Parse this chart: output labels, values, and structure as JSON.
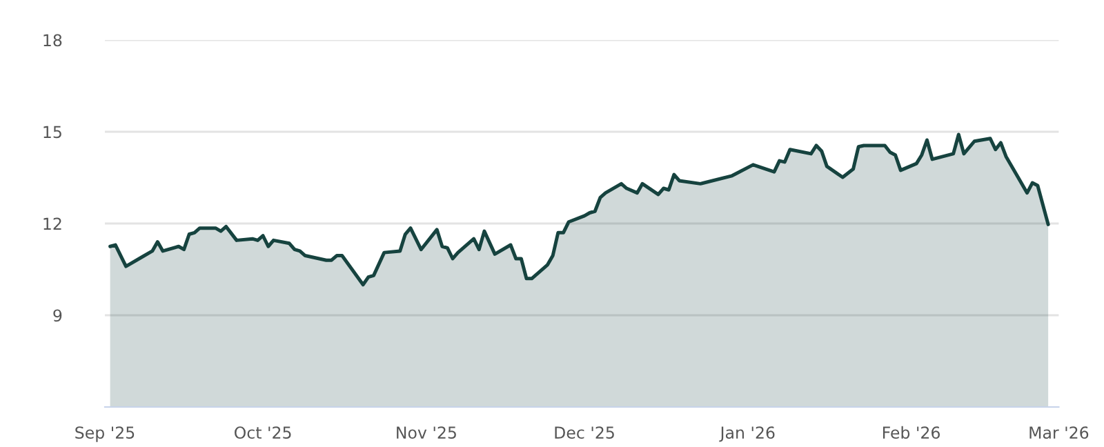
{
  "chart_data": {
    "type": "area",
    "x": [
      "2025-09-02",
      "2025-09-03",
      "2025-09-05",
      "2025-09-08",
      "2025-09-10",
      "2025-09-11",
      "2025-09-12",
      "2025-09-15",
      "2025-09-16",
      "2025-09-17",
      "2025-09-18",
      "2025-09-19",
      "2025-09-22",
      "2025-09-23",
      "2025-09-24",
      "2025-09-26",
      "2025-09-29",
      "2025-09-30",
      "2025-10-01",
      "2025-10-02",
      "2025-10-03",
      "2025-10-06",
      "2025-10-07",
      "2025-10-08",
      "2025-10-09",
      "2025-10-13",
      "2025-10-14",
      "2025-10-15",
      "2025-10-16",
      "2025-10-20",
      "2025-10-21",
      "2025-10-22",
      "2025-10-24",
      "2025-10-27",
      "2025-10-28",
      "2025-10-29",
      "2025-10-31",
      "2025-11-03",
      "2025-11-04",
      "2025-11-05",
      "2025-11-06",
      "2025-11-07",
      "2025-11-10",
      "2025-11-11",
      "2025-11-12",
      "2025-11-14",
      "2025-11-17",
      "2025-11-18",
      "2025-11-19",
      "2025-11-20",
      "2025-11-21",
      "2025-11-24",
      "2025-11-25",
      "2025-11-26",
      "2025-11-27",
      "2025-11-28",
      "2025-12-01",
      "2025-12-02",
      "2025-12-03",
      "2025-12-04",
      "2025-12-05",
      "2025-12-08",
      "2025-12-09",
      "2025-12-11",
      "2025-12-12",
      "2025-12-15",
      "2025-12-16",
      "2025-12-17",
      "2025-12-18",
      "2025-12-19",
      "2025-12-23",
      "2025-12-29",
      "2026-01-02",
      "2026-01-06",
      "2026-01-07",
      "2026-01-08",
      "2026-01-09",
      "2026-01-13",
      "2026-01-14",
      "2026-01-15",
      "2026-01-16",
      "2026-01-19",
      "2026-01-21",
      "2026-01-22",
      "2026-01-23",
      "2026-01-27",
      "2026-01-28",
      "2026-01-29",
      "2026-01-30",
      "2026-02-02",
      "2026-02-03",
      "2026-02-04",
      "2026-02-05",
      "2026-02-09",
      "2026-02-10",
      "2026-02-11",
      "2026-02-13",
      "2026-02-16",
      "2026-02-17",
      "2026-02-18",
      "2026-02-19",
      "2026-02-23",
      "2026-02-24",
      "2026-02-25",
      "2026-02-27"
    ],
    "series": [
      {
        "color": "#16433f",
        "values": [
          11.25,
          11.3,
          10.6,
          10.9,
          11.1,
          11.4,
          11.1,
          11.25,
          11.15,
          11.65,
          11.7,
          11.85,
          11.85,
          11.75,
          11.9,
          11.45,
          11.5,
          11.45,
          11.6,
          11.25,
          11.45,
          11.35,
          11.15,
          11.1,
          10.95,
          10.8,
          10.8,
          10.95,
          10.95,
          10.0,
          10.25,
          10.3,
          11.05,
          11.1,
          11.65,
          11.85,
          11.15,
          11.8,
          11.25,
          11.2,
          10.85,
          11.05,
          11.5,
          11.15,
          11.75,
          11.0,
          11.3,
          10.85,
          10.85,
          10.2,
          10.2,
          10.65,
          10.95,
          11.7,
          11.7,
          12.05,
          12.25,
          12.35,
          12.4,
          12.85,
          13.0,
          13.3,
          13.15,
          13.0,
          13.3,
          12.95,
          13.15,
          13.1,
          13.6,
          13.4,
          13.3,
          13.56,
          13.92,
          13.69,
          14.05,
          14.01,
          14.42,
          14.28,
          14.55,
          14.37,
          13.87,
          13.51,
          13.78,
          14.51,
          14.55,
          14.55,
          14.33,
          14.24,
          13.74,
          13.96,
          14.24,
          14.73,
          14.1,
          14.28,
          14.91,
          14.28,
          14.69,
          14.78,
          14.42,
          14.64,
          14.19,
          13.0,
          13.33,
          13.24,
          11.97
        ]
      }
    ],
    "xlim": [
      "2025-09-01",
      "2026-03-01"
    ],
    "xticks": [
      {
        "value": "2025-09-01",
        "label": "Sep '25"
      },
      {
        "value": "2025-10-01",
        "label": "Oct '25"
      },
      {
        "value": "2025-11-01",
        "label": "Nov '25"
      },
      {
        "value": "2025-12-01",
        "label": "Dec '25"
      },
      {
        "value": "2026-01-01",
        "label": "Jan '26"
      },
      {
        "value": "2026-02-01",
        "label": "Feb '26"
      },
      {
        "value": "2026-03-01",
        "label": "Mar '26"
      }
    ],
    "ylim": [
      6,
      18
    ],
    "yticks": [
      9,
      12,
      15,
      18
    ],
    "grid": "y",
    "legend": false
  }
}
